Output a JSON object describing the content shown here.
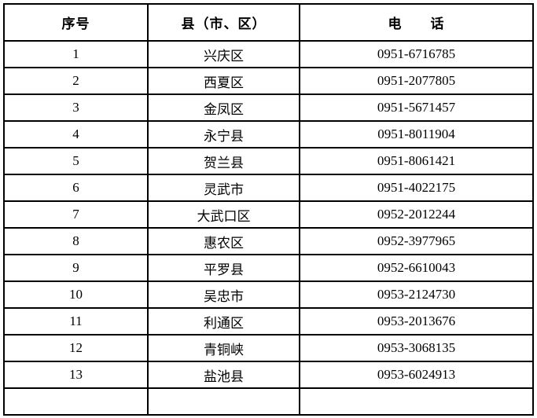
{
  "table": {
    "header": {
      "col_index": "序号",
      "col_district": "县（市、区）",
      "col_phone": "电　　话"
    },
    "rows": [
      {
        "index": "1",
        "district": "兴庆区",
        "phone": "0951-6716785"
      },
      {
        "index": "2",
        "district": "西夏区",
        "phone": "0951-2077805"
      },
      {
        "index": "3",
        "district": "金凤区",
        "phone": "0951-5671457"
      },
      {
        "index": "4",
        "district": "永宁县",
        "phone": "0951-8011904"
      },
      {
        "index": "5",
        "district": "贺兰县",
        "phone": "0951-8061421"
      },
      {
        "index": "6",
        "district": "灵武市",
        "phone": "0951-4022175"
      },
      {
        "index": "7",
        "district": "大武口区",
        "phone": "0952-2012244"
      },
      {
        "index": "8",
        "district": "惠农区",
        "phone": "0952-3977965"
      },
      {
        "index": "9",
        "district": "平罗县",
        "phone": "0952-6610043"
      },
      {
        "index": "10",
        "district": "吴忠市",
        "phone": "0953-2124730"
      },
      {
        "index": "11",
        "district": "利通区",
        "phone": "0953-2013676"
      },
      {
        "index": "12",
        "district": "青铜峡",
        "phone": "0953-3068135"
      },
      {
        "index": "13",
        "district": "盐池县",
        "phone": "0953-6024913"
      }
    ]
  },
  "colors": {
    "border": "#000000",
    "text": "#000000",
    "background": "#ffffff"
  }
}
